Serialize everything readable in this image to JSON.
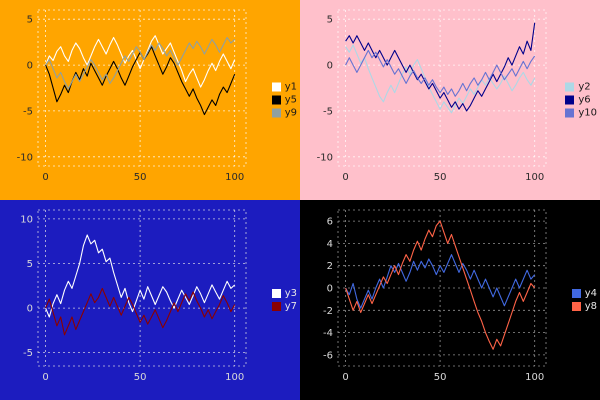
{
  "page": {
    "background": "#000000"
  },
  "chart_data": [
    {
      "type": "line",
      "title": "",
      "position": "top-left",
      "bg": "#FFA500",
      "grid_color": "#FFFFFF",
      "tick_color": "#2B2B2B",
      "legend_text_color": "#1A1A1A",
      "legend_position": "center-right",
      "grid": true,
      "xlim": [
        -4,
        106
      ],
      "ylim": [
        -11,
        6
      ],
      "x_ticks": [
        0,
        50,
        100
      ],
      "y_ticks": [
        5,
        0,
        -5,
        -10
      ],
      "x": [
        0,
        2,
        4,
        6,
        8,
        10,
        12,
        14,
        16,
        18,
        20,
        22,
        24,
        26,
        28,
        30,
        32,
        34,
        36,
        38,
        40,
        42,
        44,
        46,
        48,
        50,
        52,
        54,
        56,
        58,
        60,
        62,
        64,
        66,
        68,
        70,
        72,
        74,
        76,
        78,
        80,
        82,
        84,
        86,
        88,
        90,
        92,
        94,
        96,
        98,
        100
      ],
      "series": [
        {
          "name": "y1",
          "color": "#FFFFFF",
          "values": [
            0.0,
            1.0,
            0.5,
            1.5,
            2.0,
            1.0,
            0.4,
            1.6,
            2.4,
            1.8,
            0.8,
            0.0,
            1.0,
            2.0,
            2.8,
            2.0,
            1.2,
            2.2,
            3.0,
            2.2,
            1.2,
            0.2,
            1.0,
            1.6,
            0.6,
            -0.4,
            0.6,
            1.6,
            2.6,
            3.2,
            2.2,
            1.2,
            1.8,
            2.4,
            1.4,
            0.4,
            -0.6,
            -1.8,
            -1.0,
            -0.4,
            -1.4,
            -2.4,
            -1.6,
            -0.6,
            0.2,
            -0.6,
            0.4,
            1.2,
            0.4,
            -0.4,
            0.6
          ]
        },
        {
          "name": "y5",
          "color": "#000000",
          "values": [
            0.0,
            -1.0,
            -2.5,
            -4.0,
            -3.2,
            -2.2,
            -3.0,
            -1.8,
            -0.8,
            -1.6,
            -0.4,
            -1.2,
            0.2,
            -0.6,
            -1.4,
            -2.2,
            -1.2,
            -0.4,
            0.4,
            -0.4,
            -1.4,
            -2.2,
            -1.2,
            -0.2,
            0.6,
            1.4,
            0.6,
            1.2,
            2.0,
            1.0,
            0.0,
            -1.0,
            -0.2,
            0.8,
            0.2,
            -0.8,
            -1.8,
            -2.6,
            -3.4,
            -2.6,
            -3.6,
            -4.4,
            -5.4,
            -4.6,
            -3.8,
            -4.4,
            -3.2,
            -2.4,
            -3.0,
            -2.0,
            -1.0
          ]
        },
        {
          "name": "y9",
          "color": "#90A0A0",
          "values": [
            0.0,
            0.6,
            -0.4,
            -1.4,
            -0.8,
            -1.8,
            -2.6,
            -1.8,
            -1.0,
            -1.8,
            -1.0,
            -0.2,
            0.6,
            0.0,
            -0.8,
            -1.6,
            -1.0,
            -2.0,
            -1.4,
            -0.6,
            0.2,
            1.0,
            0.4,
            1.2,
            2.0,
            1.4,
            0.6,
            1.4,
            2.2,
            1.6,
            2.4,
            1.8,
            1.0,
            1.6,
            0.8,
            0.0,
            0.8,
            1.6,
            2.4,
            1.8,
            2.6,
            2.0,
            1.2,
            2.0,
            2.8,
            2.2,
            1.4,
            2.2,
            3.0,
            2.4,
            2.8
          ]
        }
      ]
    },
    {
      "type": "line",
      "title": "",
      "position": "top-right",
      "bg": "#FFC0CB",
      "grid_color": "#FFFFFF",
      "tick_color": "#2B2B2B",
      "legend_text_color": "#1A1A1A",
      "legend_position": "center-right",
      "grid": true,
      "xlim": [
        -4,
        106
      ],
      "ylim": [
        -11,
        6
      ],
      "x_ticks": [
        0,
        50,
        100
      ],
      "y_ticks": [
        5,
        0,
        -5,
        -10
      ],
      "x": [
        0,
        2,
        4,
        6,
        8,
        10,
        12,
        14,
        16,
        18,
        20,
        22,
        24,
        26,
        28,
        30,
        32,
        34,
        36,
        38,
        40,
        42,
        44,
        46,
        48,
        50,
        52,
        54,
        56,
        58,
        60,
        62,
        64,
        66,
        68,
        70,
        72,
        74,
        76,
        78,
        80,
        82,
        84,
        86,
        88,
        90,
        92,
        94,
        96,
        98,
        100
      ],
      "series": [
        {
          "name": "y2",
          "color": "#ADD8E6",
          "values": [
            2.0,
            1.4,
            2.2,
            1.2,
            0.2,
            0.8,
            -0.4,
            -1.4,
            -2.4,
            -3.4,
            -4.0,
            -3.0,
            -2.2,
            -3.0,
            -2.0,
            -1.0,
            -0.2,
            -1.0,
            0.0,
            0.6,
            -0.4,
            -1.4,
            -2.4,
            -3.2,
            -4.0,
            -4.8,
            -4.0,
            -4.6,
            -5.2,
            -4.4,
            -3.6,
            -4.2,
            -3.4,
            -2.6,
            -3.2,
            -2.4,
            -1.6,
            -2.2,
            -1.4,
            -2.0,
            -2.6,
            -2.0,
            -1.2,
            -2.0,
            -2.8,
            -2.2,
            -1.4,
            -0.8,
            -1.6,
            -2.2,
            -1.4
          ]
        },
        {
          "name": "y6",
          "color": "#00008B",
          "values": [
            2.6,
            3.2,
            2.4,
            3.2,
            2.4,
            1.6,
            2.4,
            1.6,
            0.8,
            1.6,
            0.8,
            0.0,
            0.8,
            1.6,
            0.8,
            0.0,
            -0.8,
            0.0,
            -0.8,
            -1.6,
            -1.0,
            -1.8,
            -2.6,
            -2.0,
            -2.8,
            -3.6,
            -3.0,
            -3.8,
            -4.6,
            -4.0,
            -4.8,
            -4.2,
            -5.0,
            -4.4,
            -3.6,
            -2.8,
            -3.4,
            -2.6,
            -1.8,
            -1.0,
            -1.8,
            -1.0,
            -0.2,
            0.8,
            0.0,
            1.0,
            2.0,
            1.2,
            2.6,
            1.6,
            4.6
          ]
        },
        {
          "name": "y10",
          "color": "#6673D2",
          "values": [
            0.0,
            0.8,
            0.0,
            -0.8,
            0.0,
            0.8,
            1.6,
            0.8,
            1.4,
            0.6,
            -0.2,
            0.6,
            -0.2,
            -1.0,
            -0.4,
            -1.2,
            -2.0,
            -1.2,
            -0.6,
            -1.4,
            -2.0,
            -1.4,
            -2.2,
            -1.6,
            -2.4,
            -3.0,
            -2.4,
            -3.2,
            -2.6,
            -3.4,
            -2.8,
            -2.0,
            -2.8,
            -2.0,
            -1.4,
            -2.2,
            -1.6,
            -0.8,
            -1.6,
            -0.8,
            0.0,
            -0.8,
            -1.6,
            -1.0,
            -0.4,
            -1.2,
            -0.4,
            0.4,
            -0.4,
            0.4,
            1.0
          ]
        }
      ]
    },
    {
      "type": "line",
      "title": "",
      "position": "bottom-left",
      "bg": "#1C1CBF",
      "grid_color": "#E8E8E8",
      "tick_color": "#D8D8D8",
      "legend_text_color": "#E6E6E6",
      "legend_position": "center-right",
      "grid": true,
      "xlim": [
        -4,
        106
      ],
      "ylim": [
        -6.5,
        11
      ],
      "x_ticks": [
        0,
        50,
        100
      ],
      "y_ticks": [
        10,
        5,
        0,
        -5
      ],
      "x": [
        0,
        2,
        4,
        6,
        8,
        10,
        12,
        14,
        16,
        18,
        20,
        22,
        24,
        26,
        28,
        30,
        32,
        34,
        36,
        38,
        40,
        42,
        44,
        46,
        48,
        50,
        52,
        54,
        56,
        58,
        60,
        62,
        64,
        66,
        68,
        70,
        72,
        74,
        76,
        78,
        80,
        82,
        84,
        86,
        88,
        90,
        92,
        94,
        96,
        98,
        100
      ],
      "series": [
        {
          "name": "y3",
          "color": "#FFFFFF",
          "values": [
            0.0,
            -1.0,
            0.5,
            1.5,
            0.5,
            2.0,
            3.0,
            2.2,
            3.6,
            5.0,
            7.0,
            8.2,
            7.2,
            7.6,
            6.2,
            6.6,
            5.2,
            5.6,
            4.0,
            2.6,
            1.2,
            2.2,
            0.6,
            -0.4,
            0.8,
            2.0,
            1.0,
            2.4,
            1.4,
            0.4,
            1.4,
            2.4,
            1.8,
            0.8,
            0.0,
            1.0,
            2.0,
            1.2,
            0.4,
            1.4,
            2.4,
            1.6,
            0.6,
            1.6,
            2.6,
            1.8,
            1.0,
            2.0,
            3.0,
            2.2,
            2.6
          ]
        },
        {
          "name": "y7",
          "color": "#8B0000",
          "values": [
            0.0,
            1.0,
            -0.5,
            -2.0,
            -1.0,
            -3.0,
            -2.0,
            -1.0,
            -2.4,
            -1.4,
            -0.4,
            0.6,
            1.6,
            0.6,
            1.2,
            2.2,
            1.2,
            0.2,
            1.2,
            0.2,
            -0.8,
            0.2,
            1.2,
            0.4,
            -0.6,
            -1.6,
            -0.8,
            -1.8,
            -1.0,
            -0.2,
            -1.2,
            -2.2,
            -1.4,
            -0.4,
            0.6,
            -0.4,
            0.6,
            1.6,
            0.8,
            1.8,
            0.8,
            0.0,
            -1.0,
            -0.2,
            -1.2,
            -0.4,
            0.4,
            1.4,
            0.6,
            -0.4,
            0.4
          ]
        }
      ]
    },
    {
      "type": "line",
      "title": "",
      "position": "bottom-right",
      "bg": "#000000",
      "grid_color": "#AAAAAA",
      "tick_color": "#D8D8D8",
      "legend_text_color": "#E6E6E6",
      "legend_position": "center-right",
      "grid": true,
      "xlim": [
        -4,
        106
      ],
      "ylim": [
        -7,
        7
      ],
      "x_ticks": [
        0,
        50,
        100
      ],
      "y_ticks": [
        6,
        4,
        2,
        0,
        -2,
        -4,
        -6
      ],
      "x": [
        0,
        2,
        4,
        6,
        8,
        10,
        12,
        14,
        16,
        18,
        20,
        22,
        24,
        26,
        28,
        30,
        32,
        34,
        36,
        38,
        40,
        42,
        44,
        46,
        48,
        50,
        52,
        54,
        56,
        58,
        60,
        62,
        64,
        66,
        68,
        70,
        72,
        74,
        76,
        78,
        80,
        82,
        84,
        86,
        88,
        90,
        92,
        94,
        96,
        98,
        100
      ],
      "series": [
        {
          "name": "y4",
          "color": "#4169E1",
          "values": [
            0.0,
            -0.6,
            0.4,
            -1.0,
            -1.8,
            -1.0,
            -0.2,
            -1.0,
            0.0,
            0.8,
            0.0,
            1.0,
            2.0,
            1.4,
            2.2,
            1.4,
            0.6,
            1.4,
            2.4,
            1.6,
            2.4,
            1.8,
            2.6,
            2.0,
            1.2,
            2.0,
            1.4,
            2.2,
            3.0,
            2.2,
            1.4,
            2.2,
            1.6,
            0.8,
            1.6,
            0.8,
            0.0,
            0.8,
            0.0,
            -0.8,
            0.0,
            -0.8,
            -1.6,
            -0.8,
            0.0,
            0.8,
            0.0,
            0.8,
            1.6,
            0.8,
            1.2
          ]
        },
        {
          "name": "y8",
          "color": "#FF6347",
          "values": [
            0.0,
            -1.0,
            -2.0,
            -1.2,
            -2.2,
            -1.4,
            -0.6,
            -1.4,
            -0.6,
            0.2,
            1.0,
            0.4,
            1.2,
            2.0,
            1.2,
            2.2,
            3.0,
            2.4,
            3.4,
            4.2,
            3.4,
            4.4,
            5.2,
            4.6,
            5.6,
            6.0,
            5.0,
            4.0,
            4.8,
            3.8,
            2.8,
            1.8,
            0.8,
            -0.2,
            -1.2,
            -2.2,
            -3.0,
            -4.0,
            -4.8,
            -5.5,
            -4.6,
            -5.2,
            -4.2,
            -3.2,
            -2.2,
            -1.2,
            -0.4,
            -1.2,
            -0.4,
            0.4,
            0.0
          ]
        }
      ]
    }
  ]
}
